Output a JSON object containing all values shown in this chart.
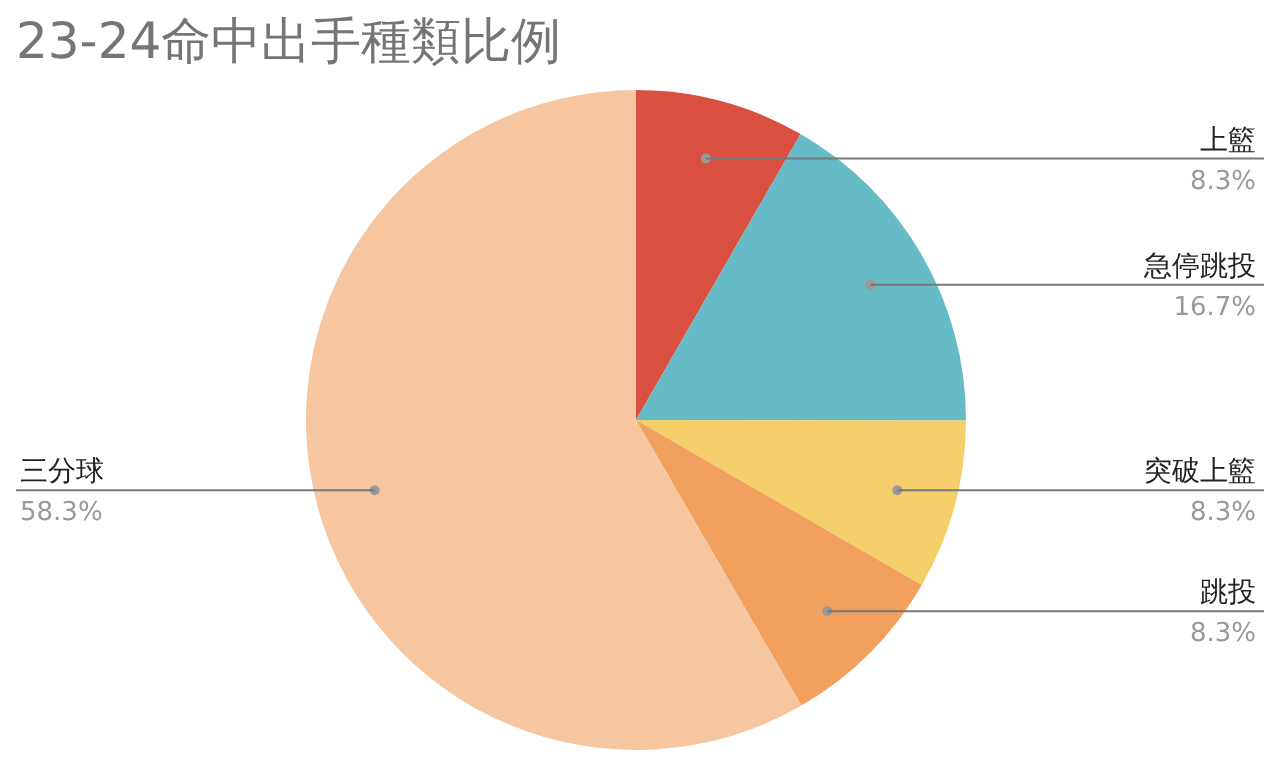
{
  "chart_data": {
    "type": "pie",
    "title": "23-24命中出手種類比例",
    "categories": [
      "上籃",
      "急停跳投",
      "突破上籃",
      "跳投",
      "三分球"
    ],
    "values": [
      8.3,
      16.7,
      8.3,
      8.3,
      58.3
    ],
    "colors": [
      "#d95040",
      "#66bbc6",
      "#f5cf6a",
      "#f2a05e",
      "#f5c6a0"
    ],
    "value_labels": [
      "8.3%",
      "16.7%",
      "8.3%",
      "8.3%",
      "58.3%"
    ]
  }
}
